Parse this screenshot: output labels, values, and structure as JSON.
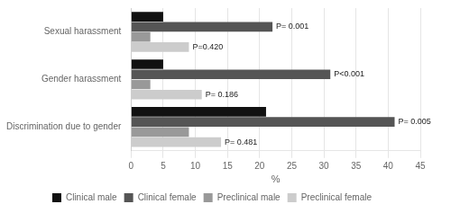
{
  "chart_data": {
    "type": "bar",
    "orientation": "horizontal",
    "categories": [
      "Sexual harassment",
      "Gender harassment",
      "Discrimination due to gender"
    ],
    "series": [
      {
        "name": "Clinical male",
        "color": "#111111",
        "values": [
          5,
          5,
          21
        ]
      },
      {
        "name": "Clinical female",
        "color": "#555555",
        "values": [
          22,
          31,
          41
        ]
      },
      {
        "name": "Preclinical male",
        "color": "#999999",
        "values": [
          3,
          3,
          9
        ]
      },
      {
        "name": "Preclinical female",
        "color": "#cccccc",
        "values": [
          9,
          11,
          14
        ]
      }
    ],
    "annotations": [
      {
        "text": "P= 0.001",
        "category": "Sexual harassment",
        "series": "Clinical female"
      },
      {
        "text": "P<0.001",
        "category": "Gender harassment",
        "series": "Clinical female"
      },
      {
        "text": "P= 0.005",
        "category": "Discrimination due to gender",
        "series": "Clinical female"
      },
      {
        "text": "P=0.420",
        "category": "Sexual harassment",
        "series": "Preclinical female"
      },
      {
        "text": "P= 0.186",
        "category": "Gender harassment",
        "series": "Preclinical female"
      },
      {
        "text": "P= 0.481",
        "category": "Discrimination due to gender",
        "series": "Preclinical female"
      }
    ],
    "xlabel": "%",
    "xlim": [
      0,
      45
    ],
    "xticks": [
      0,
      5,
      10,
      15,
      20,
      25,
      30,
      35,
      40,
      45
    ],
    "grid": true,
    "legend": "bottom"
  }
}
